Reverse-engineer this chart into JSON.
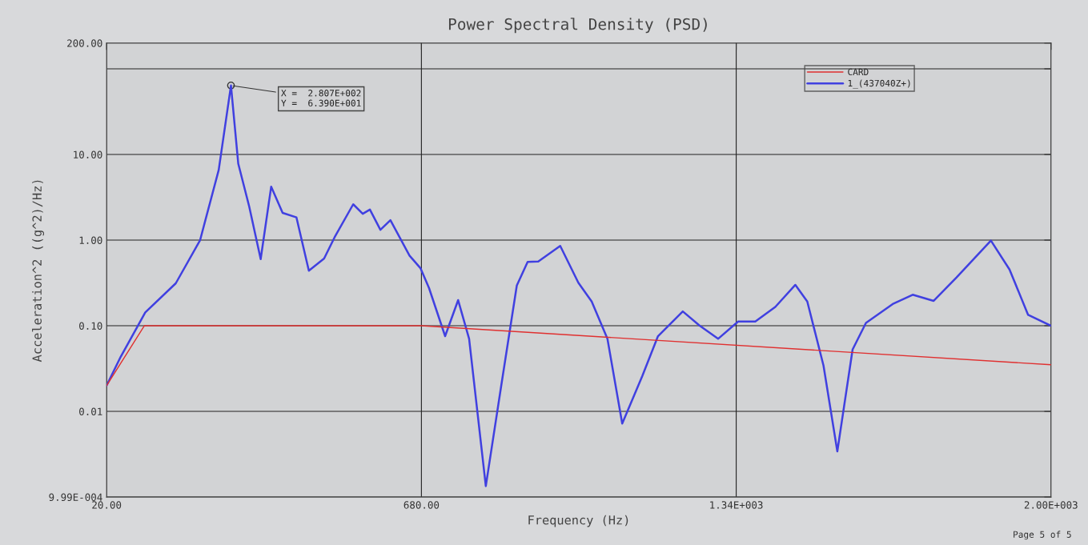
{
  "chart_data": {
    "type": "line",
    "title": "Power Spectral Density (PSD)",
    "xlabel": "Frequency (Hz)",
    "ylabel": "Acceleration^2 ((g^2)/Hz)",
    "log": "y",
    "grid": true,
    "legend": "top right",
    "xlim": [
      20,
      2000
    ],
    "xticks": [
      {
        "value": 20,
        "label": "20.00"
      },
      {
        "value": 680,
        "label": "680.00"
      },
      {
        "value": 1340,
        "label": "1.34E+003"
      },
      {
        "value": 2000,
        "label": "2.00E+003"
      }
    ],
    "ylim": [
      0.000999,
      200
    ],
    "yticks": [
      {
        "value": 0.000999,
        "label": "9.99E-004"
      },
      {
        "value": 0.01,
        "label": "0.01"
      },
      {
        "value": 0.1,
        "label": "0.10"
      },
      {
        "value": 1,
        "label": "1.00"
      },
      {
        "value": 10,
        "label": "10.00"
      },
      {
        "value": 100,
        "label": null
      },
      {
        "value": 200,
        "label": "200.00"
      }
    ],
    "series": [
      {
        "name": "CARD",
        "color": "#e03030",
        "x": [
          20,
          99,
          680,
          2000
        ],
        "values": [
          0.02,
          0.1,
          0.1,
          0.035
        ]
      },
      {
        "name": "1_(437040Z+)",
        "color": "#4040e0",
        "x": [
          20,
          49.5,
          101,
          165,
          216,
          255,
          280.7,
          296,
          319,
          343,
          365,
          389,
          418,
          444,
          476,
          498,
          537,
          557,
          572,
          594,
          615,
          655,
          678,
          696,
          729.7,
          757,
          780,
          815,
          847,
          880,
          902.7,
          925,
          971,
          1009,
          1037,
          1070,
          1101,
          1143,
          1176,
          1228,
          1263,
          1302,
          1344,
          1380,
          1422,
          1464,
          1489,
          1523,
          1552,
          1584,
          1612,
          1668,
          1710,
          1754,
          1802,
          1874,
          1913,
          1952,
          2000
        ],
        "values": [
          0.02,
          0.0434,
          0.143,
          0.313,
          1.0,
          6.6,
          63.9,
          7.8,
          2.46,
          0.6,
          4.2,
          2.08,
          1.84,
          0.44,
          0.61,
          1.08,
          2.62,
          2.03,
          2.27,
          1.32,
          1.71,
          0.66,
          0.47,
          0.275,
          0.0756,
          0.199,
          0.0704,
          0.00134,
          0.0194,
          0.295,
          0.556,
          0.563,
          0.855,
          0.318,
          0.192,
          0.0704,
          0.0072,
          0.0258,
          0.0756,
          0.147,
          0.1007,
          0.0704,
          0.112,
          0.112,
          0.166,
          0.3,
          0.192,
          0.0343,
          0.00341,
          0.0528,
          0.108,
          0.179,
          0.23,
          0.195,
          0.366,
          0.986,
          0.454,
          0.134,
          0.1
        ]
      }
    ],
    "annotations": [
      {
        "text": "X =  2.807E+002\nY =  6.390E+001",
        "x": 280.7,
        "y": 63.9
      },
      "Page 5 of 5"
    ]
  }
}
